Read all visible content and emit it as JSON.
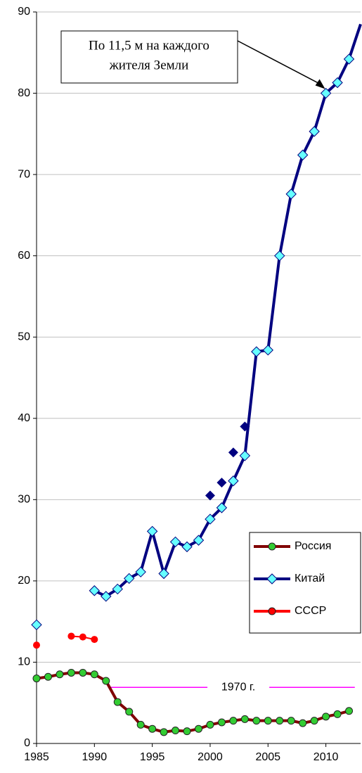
{
  "chart_data": {
    "type": "line",
    "xlim": [
      1985,
      2013
    ],
    "xticks": [
      1985,
      1990,
      1995,
      2000,
      2005,
      2010
    ],
    "ylim": [
      0,
      90
    ],
    "yticks": [
      0,
      10,
      20,
      30,
      40,
      50,
      60,
      70,
      80,
      90
    ],
    "grid": true,
    "legend": "lower right",
    "series": [
      {
        "name": "Россия",
        "color": "#800000",
        "marker_color": "#33cc33",
        "marker": "circle",
        "x": [
          1985,
          1986,
          1987,
          1988,
          1989,
          1990,
          1991,
          1992,
          1993,
          1994,
          1995,
          1996,
          1997,
          1998,
          1999,
          2000,
          2001,
          2002,
          2003,
          2004,
          2005,
          2006,
          2007,
          2008,
          2009,
          2010,
          2011,
          2012
        ],
        "values": [
          8.0,
          8.2,
          8.5,
          8.7,
          8.7,
          8.5,
          7.7,
          5.1,
          3.9,
          2.3,
          1.8,
          1.4,
          1.6,
          1.5,
          1.8,
          2.3,
          2.6,
          2.8,
          3.0,
          2.8,
          2.8,
          2.8,
          2.8,
          2.5,
          2.8,
          3.3,
          3.6,
          4.0
        ]
      },
      {
        "name": "Китай",
        "color": "#000080",
        "marker_color": "#66ffff",
        "marker": "diamond",
        "x": [
          1985,
          1986,
          1990,
          1991,
          1992,
          1993,
          1994,
          1995,
          1996,
          1997,
          1998,
          1999,
          2000,
          2001,
          2002,
          2003,
          2004,
          2005,
          2006,
          2007,
          2008,
          2009,
          2010,
          2011,
          2012,
          2013
        ],
        "values": [
          14.6,
          null,
          18.8,
          18.1,
          19.0,
          20.3,
          21.1,
          26.1,
          20.9,
          24.8,
          24.2,
          25.0,
          27.6,
          29.0,
          32.3,
          35.4,
          48.2,
          48.4,
          60.0,
          67.6,
          72.4,
          75.3,
          80.0,
          81.3,
          84.2,
          88.5
        ]
      },
      {
        "name": "СССР",
        "color": "#ff0000",
        "marker_color": "#ff0000",
        "marker": "circle",
        "x": [
          1985,
          1986,
          1988,
          1989,
          1990
        ],
        "values": [
          12.1,
          null,
          13.2,
          13.1,
          12.8
        ]
      },
      {
        "color": "#000080",
        "marker_color": "#000080",
        "marker": "diamond",
        "line": false,
        "x": [
          2000,
          2001,
          2002,
          2003
        ],
        "values": [
          30.5,
          32.1,
          35.8,
          39.0
        ]
      }
    ],
    "reference_line": {
      "label": "1970 г.",
      "value": 6.9,
      "color": "#ff00ff",
      "x": [
        1991.4,
        2012.5
      ]
    },
    "annotation": {
      "lines": [
        "По 11,5 м на каждого",
        "жителя Земли"
      ],
      "x": 2010,
      "y": 80
    }
  }
}
